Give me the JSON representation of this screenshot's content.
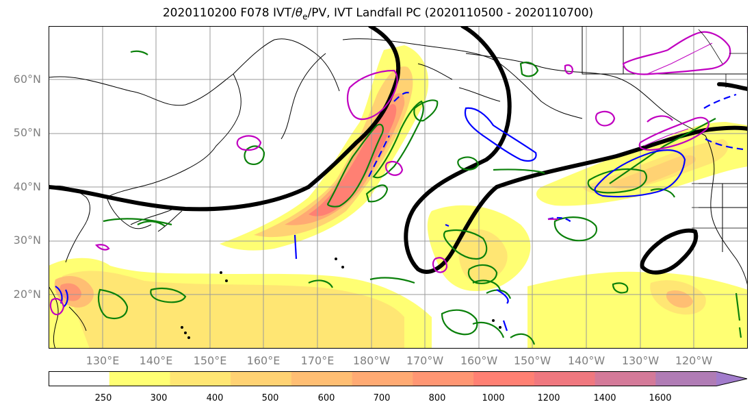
{
  "title_prefix": "2020110200 F078 IVT/",
  "title_theta": "θ",
  "title_sub": "e",
  "title_suffix": "/PV, IVT Landfall PC (2020110500 - 2020110700)",
  "lat_labels": [
    "60°N",
    "50°N",
    "40°N",
    "30°N",
    "20°N"
  ],
  "lon_labels": [
    "130°E",
    "140°E",
    "150°E",
    "160°E",
    "170°E",
    "180°W",
    "170°W",
    "160°W",
    "150°W",
    "140°W",
    "130°W",
    "120°W"
  ],
  "colorbar": {
    "ticks": [
      "250",
      "300",
      "400",
      "500",
      "600",
      "700",
      "800",
      "1000",
      "1200",
      "1400",
      "1600"
    ],
    "colors": [
      "#ffffff",
      "#ffff73",
      "#ffe673",
      "#ffd273",
      "#ffbe73",
      "#ffaa73",
      "#ff9673",
      "#ff8073",
      "#f0787f",
      "#d47a99",
      "#b07cb5",
      "#a27ccc"
    ],
    "extend": "max"
  },
  "contour_colors": {
    "pv_line": "#000000",
    "theta_e_high": "#0a800a",
    "theta_e_low": "#0000ff",
    "landfall_pc": "#c000c0"
  }
}
